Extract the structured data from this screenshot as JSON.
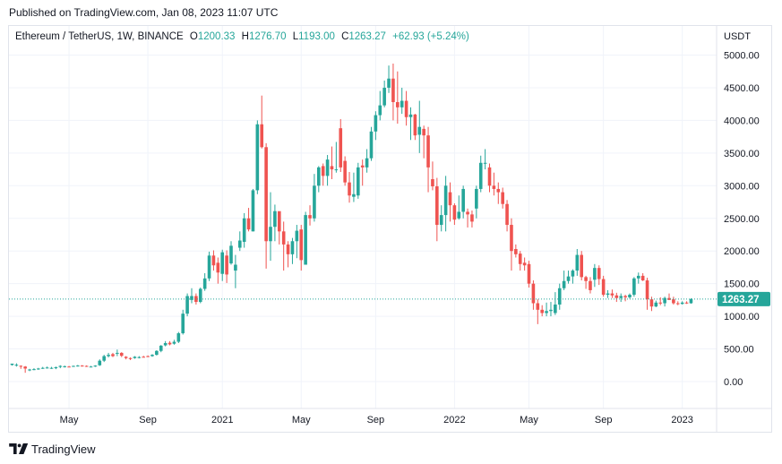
{
  "header": {
    "published": "Published on TradingView.com, Jan 08, 2023 11:07 UTC"
  },
  "legend": {
    "symbol": "Ethereum / TetherUS, 1W, BINANCE",
    "open_label": "O",
    "open": "1200.33",
    "high_label": "H",
    "high": "1276.70",
    "low_label": "L",
    "low": "1193.00",
    "close_label": "C",
    "close": "1263.27",
    "change": "+62.93 (+5.24%)"
  },
  "footer": {
    "brand": "TradingView"
  },
  "colors": {
    "up": "#26a69a",
    "down": "#ef5350",
    "last_price": "#26a69a",
    "grid": "#f0f3fa",
    "text": "#131722"
  },
  "chart_data": {
    "type": "candlestick",
    "currency": "USDT",
    "interval": "1W",
    "x_ticks": [
      "May",
      "Sep",
      "2021",
      "May",
      "Sep",
      "2022",
      "May",
      "Sep",
      "2023"
    ],
    "y_ticks": [
      "0.00",
      "500.00",
      "1000.00",
      "1500.00",
      "2000.00",
      "2500.00",
      "3000.00",
      "3500.00",
      "4000.00",
      "4500.00",
      "5000.00"
    ],
    "ylim": [
      -350,
      5050
    ],
    "last_price": {
      "value": 1263.27,
      "label": "1263.27"
    },
    "grid": true,
    "candles": [
      [
        0,
        255,
        275,
        270,
        245
      ],
      [
        1,
        255,
        258,
        280,
        230
      ],
      [
        2,
        242,
        230,
        248,
        195
      ],
      [
        3,
        230,
        200,
        238,
        135
      ],
      [
        4,
        175,
        185,
        195,
        160
      ],
      [
        5,
        185,
        190,
        205,
        175
      ],
      [
        6,
        190,
        200,
        210,
        180
      ],
      [
        7,
        205,
        210,
        225,
        195
      ],
      [
        8,
        210,
        215,
        230,
        200
      ],
      [
        9,
        210,
        210,
        225,
        195
      ],
      [
        10,
        205,
        220,
        230,
        190
      ],
      [
        11,
        225,
        240,
        250,
        205
      ],
      [
        12,
        225,
        235,
        245,
        215
      ],
      [
        13,
        230,
        228,
        240,
        220
      ],
      [
        14,
        230,
        240,
        245,
        225
      ],
      [
        15,
        235,
        245,
        255,
        230
      ],
      [
        16,
        245,
        240,
        252,
        230
      ],
      [
        17,
        240,
        230,
        248,
        225
      ],
      [
        18,
        230,
        230,
        240,
        220
      ],
      [
        19,
        230,
        245,
        250,
        225
      ],
      [
        20,
        250,
        320,
        340,
        240
      ],
      [
        21,
        320,
        390,
        410,
        300
      ],
      [
        22,
        390,
        410,
        440,
        370
      ],
      [
        23,
        420,
        390,
        440,
        375
      ],
      [
        24,
        430,
        440,
        490,
        390
      ],
      [
        25,
        440,
        395,
        450,
        375
      ],
      [
        26,
        380,
        360,
        390,
        340
      ],
      [
        27,
        360,
        350,
        370,
        330
      ],
      [
        28,
        360,
        380,
        390,
        350
      ],
      [
        29,
        370,
        375,
        390,
        355
      ],
      [
        30,
        380,
        375,
        395,
        370
      ],
      [
        31,
        390,
        380,
        400,
        375
      ],
      [
        32,
        390,
        410,
        420,
        380
      ],
      [
        33,
        410,
        470,
        480,
        400
      ],
      [
        34,
        470,
        550,
        560,
        450
      ],
      [
        35,
        555,
        590,
        620,
        540
      ],
      [
        36,
        595,
        570,
        620,
        555
      ],
      [
        37,
        580,
        610,
        640,
        565
      ],
      [
        38,
        610,
        740,
        760,
        590
      ],
      [
        39,
        740,
        1040,
        1100,
        720
      ],
      [
        40,
        1040,
        1310,
        1350,
        1000
      ],
      [
        41,
        1250,
        1310,
        1430,
        1200
      ],
      [
        42,
        1310,
        1220,
        1350,
        1180
      ],
      [
        43,
        1220,
        1420,
        1440,
        1200
      ],
      [
        44,
        1420,
        1580,
        1660,
        1390
      ],
      [
        45,
        1580,
        1930,
        1990,
        1540
      ],
      [
        46,
        1930,
        1780,
        2010,
        1700
      ],
      [
        47,
        1820,
        1670,
        1900,
        1500
      ],
      [
        48,
        1650,
        1980,
        2020,
        1540
      ],
      [
        49,
        1930,
        1640,
        2010,
        1510
      ],
      [
        50,
        1810,
        2080,
        2150,
        1790
      ],
      [
        51,
        1700,
        1790,
        1940,
        1430
      ],
      [
        52,
        2050,
        2160,
        2300,
        2000
      ],
      [
        53,
        2140,
        2500,
        2580,
        2050
      ],
      [
        54,
        2500,
        2330,
        2660,
        2300
      ],
      [
        55,
        2300,
        2930,
        2950,
        2300
      ],
      [
        56,
        2930,
        3940,
        4000,
        2870
      ],
      [
        57,
        3940,
        3590,
        4380,
        3570
      ],
      [
        58,
        3590,
        2150,
        3650,
        1730
      ],
      [
        59,
        2150,
        2370,
        2900,
        1850
      ],
      [
        60,
        2370,
        2610,
        2710,
        2150
      ],
      [
        61,
        2610,
        2300,
        2600,
        2100
      ],
      [
        62,
        2300,
        2100,
        2450,
        1700
      ],
      [
        63,
        2100,
        1950,
        2150,
        1750
      ],
      [
        64,
        1950,
        2150,
        2200,
        1800
      ],
      [
        65,
        2150,
        2310,
        2400,
        1890
      ],
      [
        66,
        2330,
        1860,
        2400,
        1700
      ],
      [
        67,
        1790,
        2550,
        2600,
        1880
      ],
      [
        68,
        2550,
        2500,
        2700,
        2390
      ],
      [
        69,
        2500,
        3000,
        3180,
        2450
      ],
      [
        70,
        3000,
        3280,
        3300,
        2900
      ],
      [
        71,
        3300,
        3150,
        3340,
        3000
      ],
      [
        72,
        3150,
        3400,
        3470,
        3000
      ],
      [
        73,
        3300,
        3250,
        3600,
        3100
      ],
      [
        74,
        3250,
        3250,
        3670,
        3200
      ],
      [
        75,
        3880,
        3280,
        4020,
        3210
      ],
      [
        76,
        3380,
        3050,
        3450,
        3000
      ],
      [
        77,
        3050,
        2850,
        3210,
        2740
      ],
      [
        78,
        2830,
        2870,
        3200,
        2750
      ],
      [
        79,
        2850,
        3280,
        3350,
        2800
      ],
      [
        80,
        3310,
        3280,
        3400,
        3000
      ],
      [
        81,
        3280,
        3420,
        3560,
        3200
      ],
      [
        82,
        3420,
        3830,
        3900,
        3380
      ],
      [
        83,
        3830,
        4080,
        4140,
        3700
      ],
      [
        84,
        4080,
        4230,
        4450,
        4000
      ],
      [
        85,
        4230,
        4500,
        4610,
        4200
      ],
      [
        86,
        4500,
        4640,
        4840,
        4420
      ],
      [
        87,
        4640,
        4280,
        4870,
        4000
      ],
      [
        88,
        4280,
        4200,
        4750,
        3950
      ],
      [
        89,
        4200,
        4300,
        4500,
        4100
      ],
      [
        90,
        4300,
        4050,
        4450,
        3920
      ],
      [
        91,
        4050,
        4090,
        4200,
        3700
      ],
      [
        92,
        4090,
        3770,
        4100,
        3700
      ],
      [
        93,
        3780,
        3900,
        4300,
        3500
      ],
      [
        94,
        3870,
        3770,
        3920,
        3420
      ],
      [
        95,
        3770,
        3280,
        3900,
        2900
      ],
      [
        96,
        3100,
        2990,
        3370,
        2930
      ],
      [
        97,
        2990,
        2400,
        3120,
        2150
      ],
      [
        98,
        2400,
        2550,
        2700,
        2300
      ],
      [
        99,
        2550,
        3000,
        3150,
        2300
      ],
      [
        100,
        2900,
        2700,
        3050,
        2450
      ],
      [
        101,
        2700,
        2480,
        2730,
        2400
      ],
      [
        102,
        2500,
        2600,
        2850,
        2480
      ],
      [
        103,
        2600,
        2950,
        3000,
        2500
      ],
      [
        104,
        2600,
        2560,
        2650,
        2360
      ],
      [
        105,
        2560,
        2450,
        2620,
        2360
      ],
      [
        106,
        2650,
        2950,
        3000,
        2500
      ],
      [
        107,
        2950,
        3350,
        3460,
        2900
      ],
      [
        108,
        3350,
        3350,
        3560,
        3250
      ],
      [
        109,
        3280,
        3000,
        3340,
        2900
      ],
      [
        110,
        3000,
        2950,
        3200,
        2850
      ],
      [
        111,
        2950,
        2900,
        3050,
        2720
      ],
      [
        112,
        2900,
        2720,
        2970,
        2650
      ],
      [
        113,
        2720,
        2400,
        2780,
        2300
      ],
      [
        114,
        2400,
        2000,
        2500,
        1700
      ],
      [
        115,
        2030,
        1950,
        2100,
        1900
      ],
      [
        116,
        1960,
        1800,
        2000,
        1700
      ],
      [
        117,
        1820,
        1780,
        1900,
        1700
      ],
      [
        118,
        1800,
        1500,
        1850,
        1440
      ],
      [
        119,
        1500,
        1200,
        1550,
        1100
      ],
      [
        120,
        1200,
        1100,
        1260,
        880
      ],
      [
        121,
        1100,
        1050,
        1170,
        1000
      ],
      [
        122,
        1050,
        1080,
        1210,
        1000
      ],
      [
        123,
        1080,
        1100,
        1220,
        1000
      ],
      [
        124,
        1050,
        1180,
        1370,
        1020
      ],
      [
        125,
        1180,
        1430,
        1500,
        1100
      ],
      [
        126,
        1430,
        1540,
        1700,
        1400
      ],
      [
        127,
        1540,
        1610,
        1700,
        1500
      ],
      [
        128,
        1610,
        1700,
        1720,
        1500
      ],
      [
        129,
        1700,
        1940,
        2030,
        1620
      ],
      [
        130,
        1940,
        1600,
        2000,
        1550
      ],
      [
        131,
        1600,
        1540,
        1620,
        1420
      ],
      [
        132,
        1540,
        1400,
        1600,
        1350
      ],
      [
        133,
        1560,
        1740,
        1800,
        1450
      ],
      [
        134,
        1740,
        1570,
        1780,
        1480
      ],
      [
        135,
        1570,
        1330,
        1620,
        1300
      ],
      [
        136,
        1330,
        1350,
        1400,
        1280
      ],
      [
        137,
        1350,
        1320,
        1410,
        1280
      ],
      [
        138,
        1320,
        1280,
        1360,
        1220
      ],
      [
        139,
        1280,
        1310,
        1350,
        1220
      ],
      [
        140,
        1310,
        1290,
        1330,
        1230
      ],
      [
        141,
        1290,
        1330,
        1350,
        1270
      ],
      [
        142,
        1330,
        1580,
        1600,
        1300
      ],
      [
        143,
        1580,
        1620,
        1670,
        1500
      ],
      [
        144,
        1620,
        1550,
        1660,
        1540
      ],
      [
        145,
        1550,
        1260,
        1590,
        1100
      ],
      [
        146,
        1260,
        1150,
        1300,
        1080
      ],
      [
        147,
        1150,
        1210,
        1240,
        1140
      ],
      [
        148,
        1210,
        1200,
        1290,
        1170
      ],
      [
        149,
        1200,
        1280,
        1300,
        1150
      ],
      [
        150,
        1280,
        1250,
        1350,
        1250
      ],
      [
        151,
        1260,
        1200,
        1300,
        1180
      ],
      [
        152,
        1200,
        1190,
        1230,
        1170
      ],
      [
        153,
        1190,
        1210,
        1230,
        1180
      ],
      [
        154,
        1210,
        1200,
        1230,
        1190
      ],
      [
        155,
        1200,
        1263,
        1277,
        1193
      ]
    ]
  }
}
